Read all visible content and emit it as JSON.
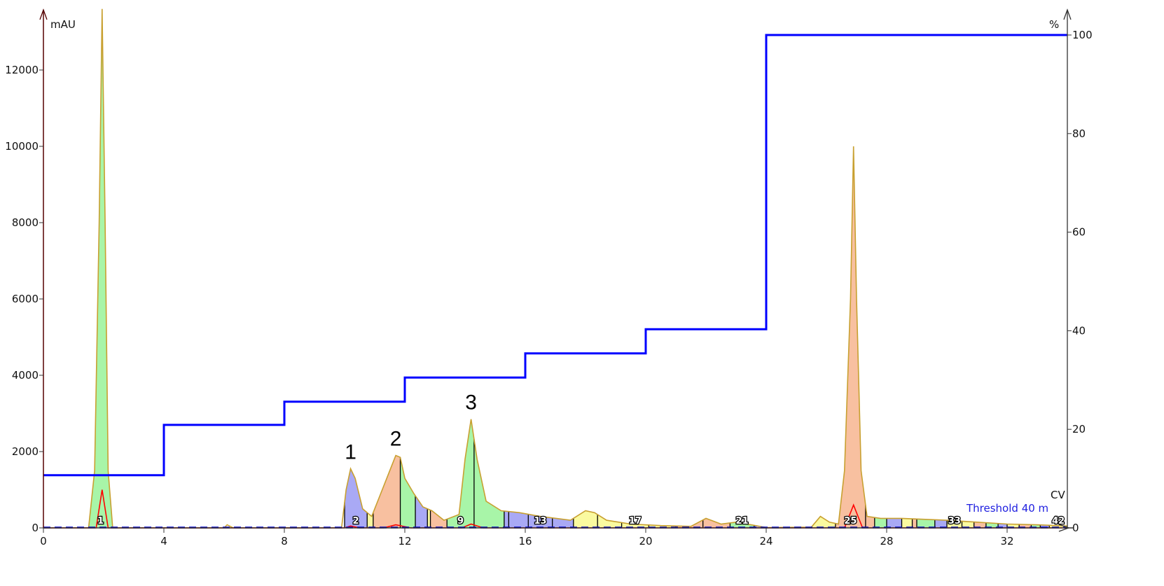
{
  "chart_data": {
    "type": "area",
    "xlabel": "CV",
    "ylabel": "mAU",
    "y2label": "%",
    "xlim": [
      0,
      34
    ],
    "ylim": [
      0,
      13600
    ],
    "y2lim": [
      0,
      100
    ],
    "xticks": [
      0,
      4,
      8,
      12,
      16,
      20,
      24,
      28,
      32
    ],
    "yticks": [
      0,
      2000,
      4000,
      6000,
      8000,
      10000,
      12000
    ],
    "y2ticks": [
      0,
      20,
      40,
      60,
      80,
      100
    ],
    "grid": false,
    "uv_trace": [
      [
        0,
        0
      ],
      [
        1.5,
        0
      ],
      [
        1.7,
        1500
      ],
      [
        1.85,
        8000
      ],
      [
        1.95,
        13600
      ],
      [
        2.05,
        8000
      ],
      [
        2.15,
        1500
      ],
      [
        2.3,
        0
      ],
      [
        6,
        0
      ],
      [
        6.1,
        80
      ],
      [
        6.3,
        0
      ],
      [
        9.9,
        0
      ],
      [
        10.05,
        1000
      ],
      [
        10.2,
        1550
      ],
      [
        10.35,
        1300
      ],
      [
        10.6,
        500
      ],
      [
        10.9,
        300
      ],
      [
        11.2,
        900
      ],
      [
        11.5,
        1500
      ],
      [
        11.7,
        1900
      ],
      [
        11.85,
        1850
      ],
      [
        12.0,
        1300
      ],
      [
        12.3,
        900
      ],
      [
        12.6,
        550
      ],
      [
        12.9,
        450
      ],
      [
        13.3,
        200
      ],
      [
        13.8,
        350
      ],
      [
        14.0,
        1800
      ],
      [
        14.2,
        2850
      ],
      [
        14.4,
        1800
      ],
      [
        14.7,
        700
      ],
      [
        15.2,
        450
      ],
      [
        15.8,
        400
      ],
      [
        16.5,
        300
      ],
      [
        17.5,
        200
      ],
      [
        18.0,
        450
      ],
      [
        18.3,
        400
      ],
      [
        18.7,
        200
      ],
      [
        19.5,
        100
      ],
      [
        20.5,
        60
      ],
      [
        21.5,
        40
      ],
      [
        22,
        250
      ],
      [
        22.5,
        100
      ],
      [
        23,
        150
      ],
      [
        23.5,
        80
      ],
      [
        24,
        10
      ],
      [
        25.5,
        20
      ],
      [
        25.8,
        300
      ],
      [
        26.1,
        150
      ],
      [
        26.4,
        100
      ],
      [
        26.6,
        1500
      ],
      [
        26.8,
        6000
      ],
      [
        26.9,
        10000
      ],
      [
        27.0,
        6000
      ],
      [
        27.15,
        1500
      ],
      [
        27.35,
        300
      ],
      [
        27.8,
        250
      ],
      [
        28.5,
        250
      ],
      [
        30,
        200
      ],
      [
        31,
        150
      ],
      [
        32,
        100
      ],
      [
        33,
        80
      ],
      [
        34,
        50
      ]
    ],
    "uv2_trace": [
      [
        0,
        0
      ],
      [
        1.75,
        0
      ],
      [
        1.95,
        1000
      ],
      [
        2.15,
        0
      ],
      [
        10,
        0
      ],
      [
        10.2,
        50
      ],
      [
        10.5,
        0
      ],
      [
        11.3,
        0
      ],
      [
        11.7,
        80
      ],
      [
        12.2,
        0
      ],
      [
        13.9,
        0
      ],
      [
        14.2,
        100
      ],
      [
        14.6,
        0
      ],
      [
        26.6,
        0
      ],
      [
        26.9,
        600
      ],
      [
        27.2,
        0
      ],
      [
        34,
        0
      ]
    ],
    "gradient_percent": [
      [
        0,
        10.7
      ],
      [
        4,
        10.7
      ],
      [
        4,
        20.9
      ],
      [
        8,
        20.9
      ],
      [
        8,
        25.6
      ],
      [
        12,
        25.6
      ],
      [
        12,
        30.5
      ],
      [
        16,
        30.5
      ],
      [
        16,
        35.4
      ],
      [
        20,
        35.4
      ],
      [
        20,
        40.3
      ],
      [
        24,
        40.3
      ],
      [
        24,
        100
      ],
      [
        34,
        100
      ]
    ],
    "threshold_mAU": 40,
    "threshold_label": "Threshold 40 m",
    "fraction_colors": {
      "B": "#a9a9f5",
      "Y": "#fafaa0",
      "O": "#f8c0a0",
      "G": "#a8f5a8"
    },
    "fractions": [
      {
        "n": 1,
        "start": 1.5,
        "end": 2.3,
        "c": "G",
        "label": "1"
      },
      {
        "n": 2,
        "start": 10.0,
        "end": 10.75,
        "c": "B",
        "label": "2"
      },
      {
        "n": 3,
        "start": 10.75,
        "end": 10.95,
        "c": "Y"
      },
      {
        "n": 4,
        "start": 10.95,
        "end": 11.85,
        "c": "O"
      },
      {
        "n": 5,
        "start": 11.85,
        "end": 12.35,
        "c": "G"
      },
      {
        "n": 6,
        "start": 12.35,
        "end": 12.75,
        "c": "B"
      },
      {
        "n": 7,
        "start": 12.75,
        "end": 12.85,
        "c": "Y"
      },
      {
        "n": 8,
        "start": 12.85,
        "end": 13.4,
        "c": "O"
      },
      {
        "n": 9,
        "start": 13.4,
        "end": 14.3,
        "c": "G",
        "label": "9"
      },
      {
        "n": 10,
        "start": 14.3,
        "end": 15.3,
        "c": "G"
      },
      {
        "n": 11,
        "start": 15.3,
        "end": 15.45,
        "c": "B"
      },
      {
        "n": 12,
        "start": 15.45,
        "end": 16.1,
        "c": "B"
      },
      {
        "n": 13,
        "start": 16.1,
        "end": 16.9,
        "c": "B",
        "label": "13"
      },
      {
        "n": 14,
        "start": 16.9,
        "end": 17.6,
        "c": "B"
      },
      {
        "n": 15,
        "start": 17.6,
        "end": 18.4,
        "c": "Y"
      },
      {
        "n": 16,
        "start": 18.4,
        "end": 19.2,
        "c": "Y"
      },
      {
        "n": 17,
        "start": 19.2,
        "end": 20.1,
        "c": "Y",
        "label": "17"
      },
      {
        "n": 18,
        "start": 20.1,
        "end": 21.0,
        "c": "Y"
      },
      {
        "n": 19,
        "start": 21.0,
        "end": 21.9,
        "c": "O"
      },
      {
        "n": 20,
        "start": 21.9,
        "end": 22.8,
        "c": "O"
      },
      {
        "n": 21,
        "start": 22.8,
        "end": 23.6,
        "c": "G",
        "label": "21"
      },
      {
        "n": 22,
        "start": 23.6,
        "end": 24.4,
        "c": "B"
      },
      {
        "n": 23,
        "start": 24.4,
        "end": 25.4,
        "c": "Y"
      },
      {
        "n": 24,
        "start": 25.4,
        "end": 26.3,
        "c": "Y"
      },
      {
        "n": 25,
        "start": 26.3,
        "end": 27.3,
        "c": "O",
        "label": "25"
      },
      {
        "n": 26,
        "start": 27.3,
        "end": 27.6,
        "c": "O"
      },
      {
        "n": 27,
        "start": 27.6,
        "end": 28.0,
        "c": "G"
      },
      {
        "n": 28,
        "start": 28.0,
        "end": 28.5,
        "c": "B"
      },
      {
        "n": 29,
        "start": 28.5,
        "end": 28.85,
        "c": "Y"
      },
      {
        "n": 30,
        "start": 28.85,
        "end": 29.0,
        "c": "O"
      },
      {
        "n": 31,
        "start": 29.0,
        "end": 29.6,
        "c": "G"
      },
      {
        "n": 32,
        "start": 29.6,
        "end": 30.0,
        "c": "B"
      },
      {
        "n": 33,
        "start": 30.0,
        "end": 30.5,
        "c": "Y",
        "label": "33"
      },
      {
        "n": 34,
        "start": 30.5,
        "end": 30.9,
        "c": "Y"
      },
      {
        "n": 35,
        "start": 30.9,
        "end": 31.3,
        "c": "O"
      },
      {
        "n": 36,
        "start": 31.3,
        "end": 31.7,
        "c": "G"
      },
      {
        "n": 37,
        "start": 31.7,
        "end": 32.0,
        "c": "B"
      },
      {
        "n": 38,
        "start": 32.0,
        "end": 32.4,
        "c": "Y"
      },
      {
        "n": 39,
        "start": 32.4,
        "end": 32.8,
        "c": "O"
      },
      {
        "n": 40,
        "start": 32.8,
        "end": 33.1,
        "c": "G"
      },
      {
        "n": 41,
        "start": 33.1,
        "end": 33.4,
        "c": "B"
      },
      {
        "n": 42,
        "start": 33.4,
        "end": 34.0,
        "c": "Y",
        "label": "42"
      }
    ],
    "annotations": [
      {
        "text": "1",
        "x": 10.2,
        "y": 1550
      },
      {
        "text": "2",
        "x": 11.7,
        "y": 1900
      },
      {
        "text": "3",
        "x": 14.2,
        "y": 2850
      }
    ],
    "colors": {
      "uv": "#c8a030",
      "uv2": "#ff0000",
      "gradient": "#0000ff",
      "baseline": "#0000cc",
      "axis_left": "#550000",
      "axis": "#333333"
    }
  }
}
